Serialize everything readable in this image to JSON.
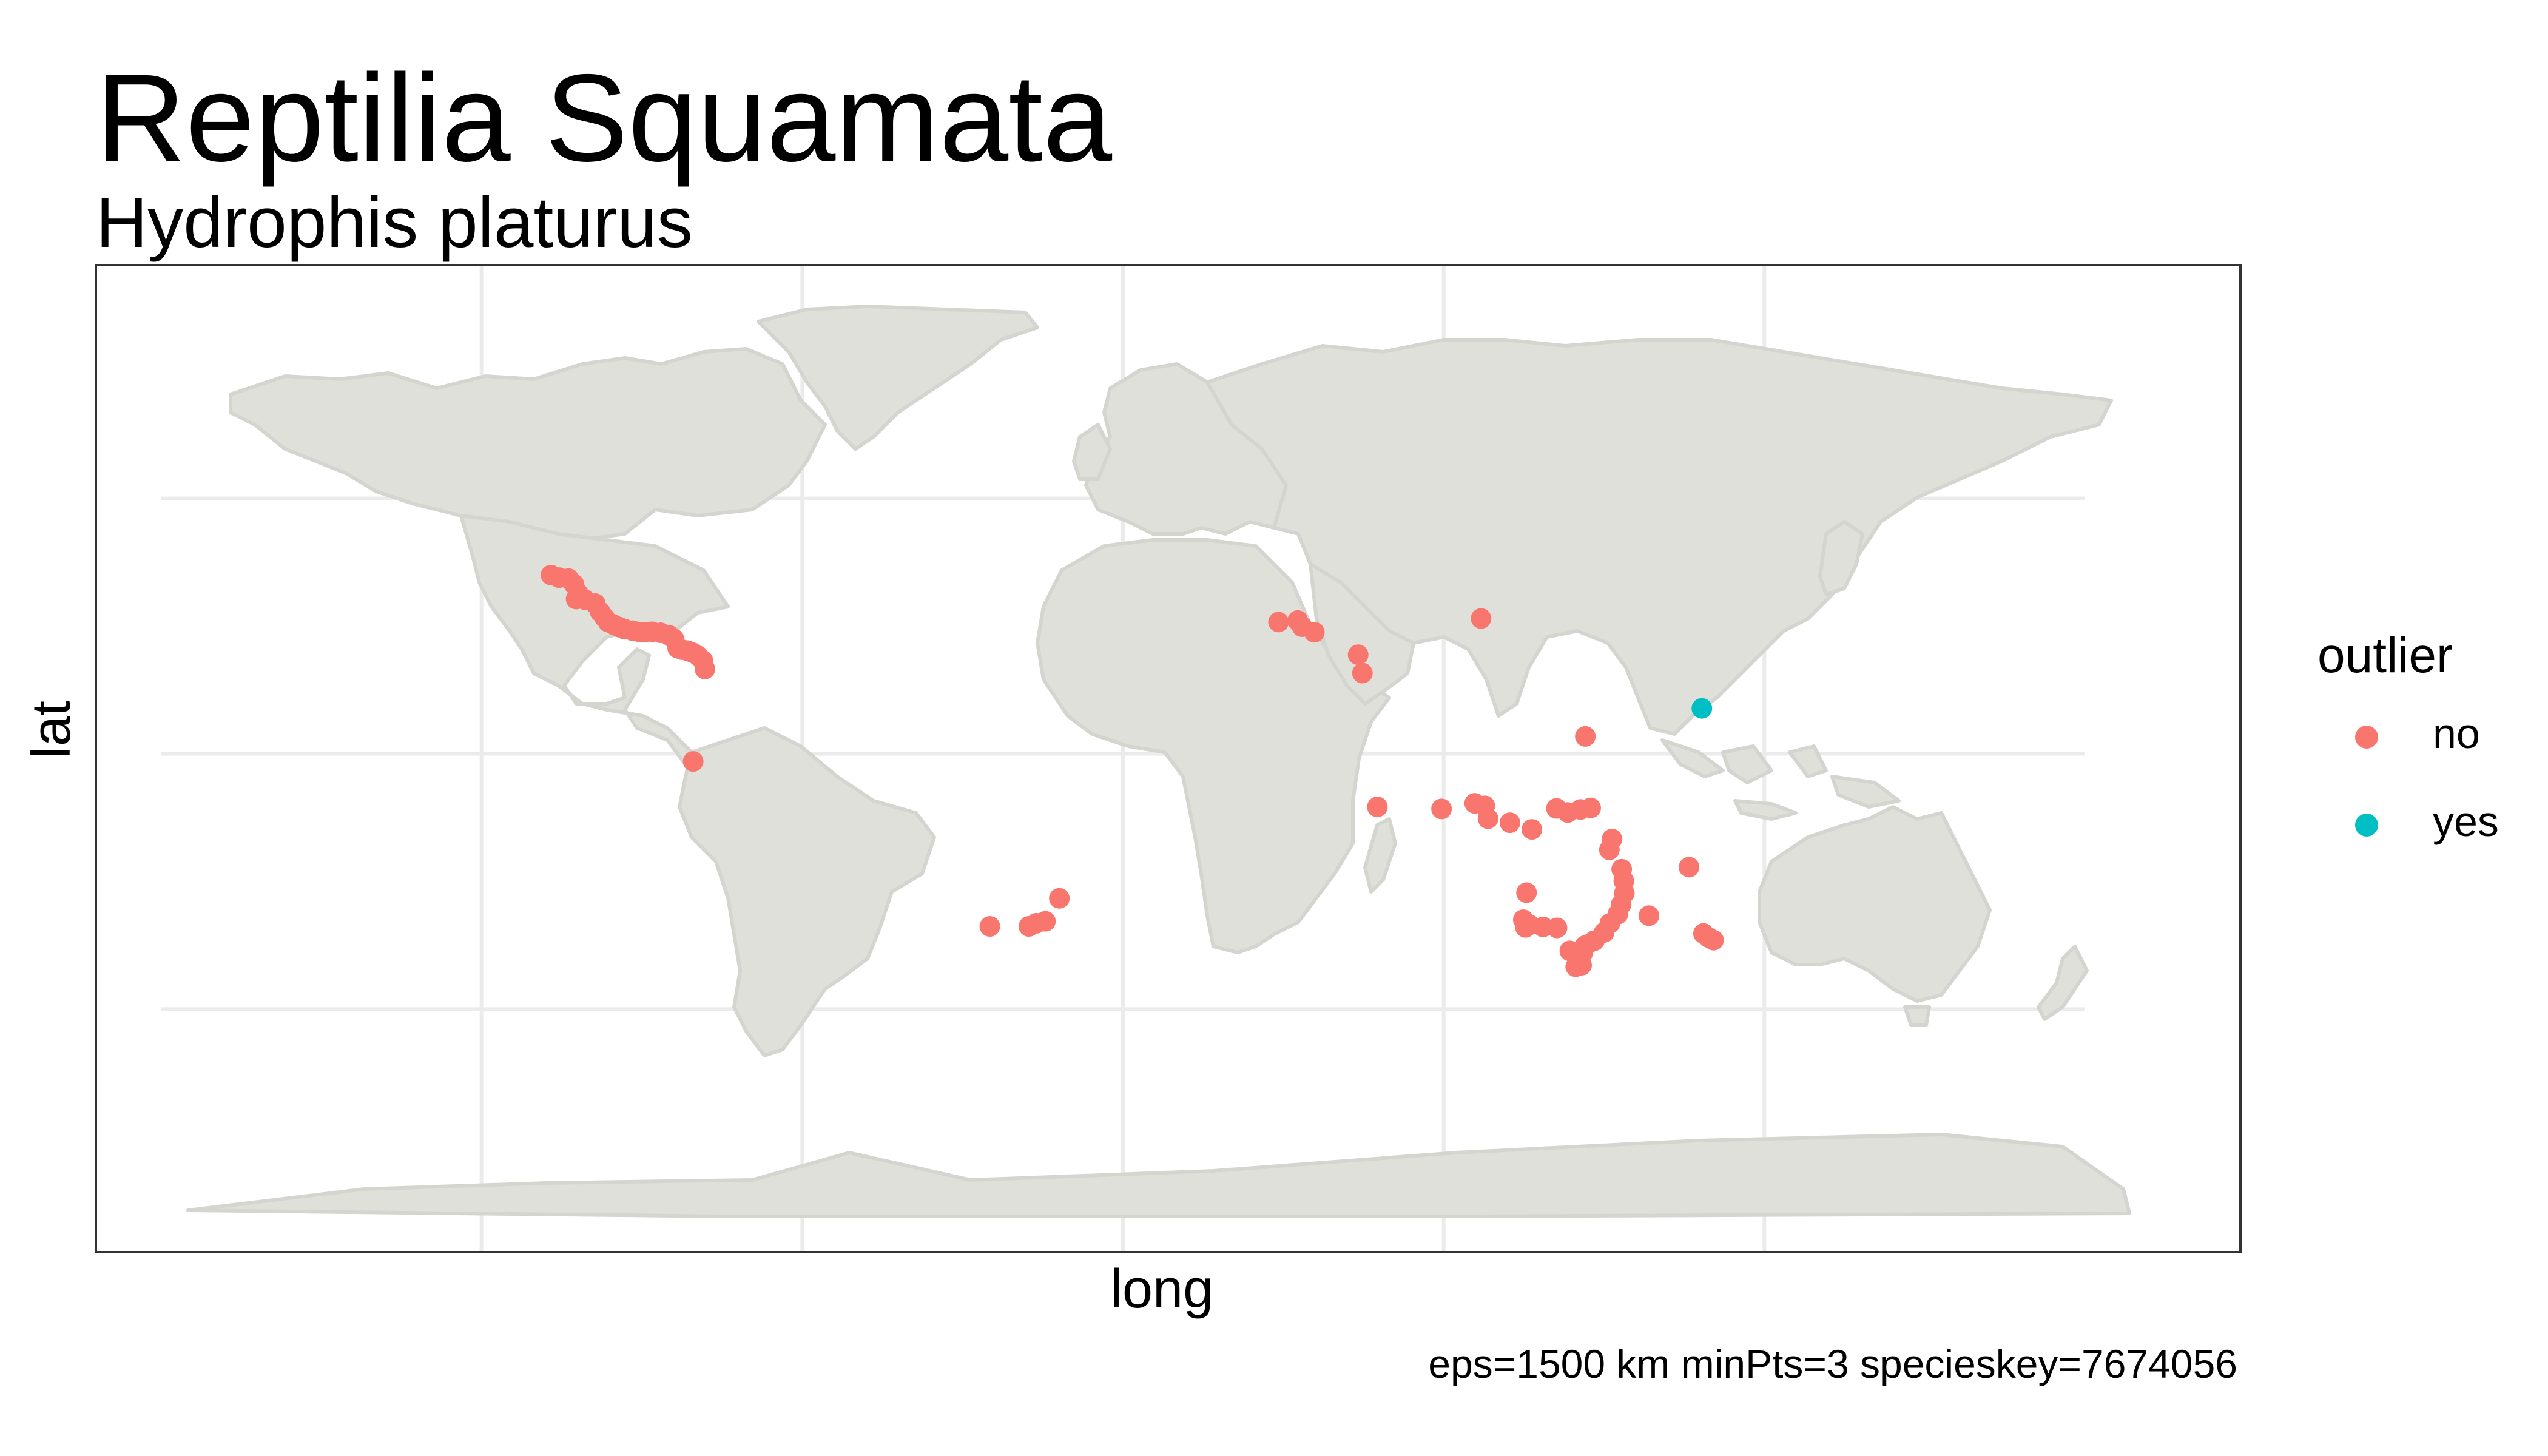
{
  "chart_data": {
    "type": "scatter",
    "title": "Reptilia Squamata",
    "subtitle": "Hydrophis platurus",
    "xlabel": "long",
    "ylabel": "lat",
    "caption": "eps=1500 km minPts=3 specieskey=7674056",
    "xlim": [
      -180,
      180
    ],
    "ylim": [
      -90,
      90
    ],
    "grid": true,
    "x_gridlines": [
      -120,
      -60,
      0,
      60,
      120
    ],
    "y_gridlines": [
      -50,
      0,
      50
    ],
    "show_tick_labels": false,
    "legend": {
      "title": "outlier",
      "placement": "right",
      "entries": [
        {
          "label": "no",
          "color": "#F8766D"
        },
        {
          "label": "yes",
          "color": "#00BFC4"
        }
      ]
    },
    "series": [
      {
        "name": "no",
        "color": "#F8766D",
        "points": [
          [
            -107,
            35
          ],
          [
            -105.5,
            34.5
          ],
          [
            -103.7,
            34.3
          ],
          [
            -102.7,
            33.2
          ],
          [
            -101.9,
            31.4
          ],
          [
            -102.3,
            30.3
          ],
          [
            -100.7,
            30.2
          ],
          [
            -98.7,
            29.4
          ],
          [
            -97.8,
            27.8
          ],
          [
            -97,
            26.7
          ],
          [
            -96.3,
            25.8
          ],
          [
            -95.3,
            25.3
          ],
          [
            -94.2,
            24.8
          ],
          [
            -93.2,
            24.4
          ],
          [
            -91.7,
            24.1
          ],
          [
            -90.3,
            23.8
          ],
          [
            -89.5,
            23.8
          ],
          [
            -88.1,
            23.9
          ],
          [
            -86.5,
            23.7
          ],
          [
            -84.9,
            23.2
          ],
          [
            -84,
            22.5
          ],
          [
            -83.3,
            20.7
          ],
          [
            -82.5,
            20.4
          ],
          [
            -81.5,
            20.2
          ],
          [
            -80.5,
            19.8
          ],
          [
            -79.5,
            19.2
          ],
          [
            -78.6,
            18.3
          ],
          [
            -78.2,
            16.6
          ],
          [
            -80.4,
            -1.5
          ],
          [
            29.1,
            25.8
          ],
          [
            32.7,
            26.1
          ],
          [
            33.5,
            24.9
          ],
          [
            35.8,
            23.8
          ],
          [
            44,
            19.4
          ],
          [
            44.8,
            15.8
          ],
          [
            67,
            26.5
          ],
          [
            86.5,
            3.4
          ],
          [
            47.6,
            -10.4
          ],
          [
            59.6,
            -10.8
          ],
          [
            67.7,
            -10.2
          ],
          [
            72.4,
            -13.5
          ],
          [
            65.8,
            -9.7
          ],
          [
            68.3,
            -12.7
          ],
          [
            76.5,
            -14.8
          ],
          [
            81.1,
            -10.7
          ],
          [
            83.2,
            -11.5
          ],
          [
            85.6,
            -10.9
          ],
          [
            87.5,
            -10.6
          ],
          [
            91.5,
            -16.7
          ],
          [
            91,
            -18.8
          ],
          [
            93.3,
            -22.6
          ],
          [
            93.7,
            -24.9
          ],
          [
            93.8,
            -27.3
          ],
          [
            93.2,
            -29.5
          ],
          [
            92.6,
            -31.4
          ],
          [
            91.1,
            -33.2
          ],
          [
            90,
            -35
          ],
          [
            88.2,
            -36.6
          ],
          [
            86.8,
            -37.4
          ],
          [
            86,
            -39
          ],
          [
            85.8,
            -41.4
          ],
          [
            83.6,
            -38.6
          ],
          [
            84.7,
            -41.7
          ],
          [
            86.4,
            -37.6
          ],
          [
            75.5,
            -27.2
          ],
          [
            74.9,
            -32.5
          ],
          [
            75.3,
            -34
          ],
          [
            76.1,
            -33.5
          ],
          [
            78.6,
            -33.9
          ],
          [
            81.2,
            -34.1
          ],
          [
            98.4,
            -31.7
          ],
          [
            105.9,
            -22.2
          ],
          [
            108.6,
            -35.2
          ],
          [
            109.6,
            -36
          ],
          [
            110.5,
            -36.5
          ],
          [
            -24.9,
            -33.8
          ],
          [
            -17.6,
            -33.8
          ],
          [
            -16.2,
            -33.2
          ],
          [
            -14.5,
            -32.8
          ],
          [
            -11.9,
            -28.3
          ]
        ]
      },
      {
        "name": "yes",
        "color": "#00BFC4",
        "points": [
          [
            108.3,
            8.9
          ]
        ]
      }
    ]
  },
  "map": {
    "land_color": "#DFE0DA",
    "border_color": "#D4D5CF",
    "panel_border_color": "#333333",
    "grid_color": "#EBEBEB"
  }
}
